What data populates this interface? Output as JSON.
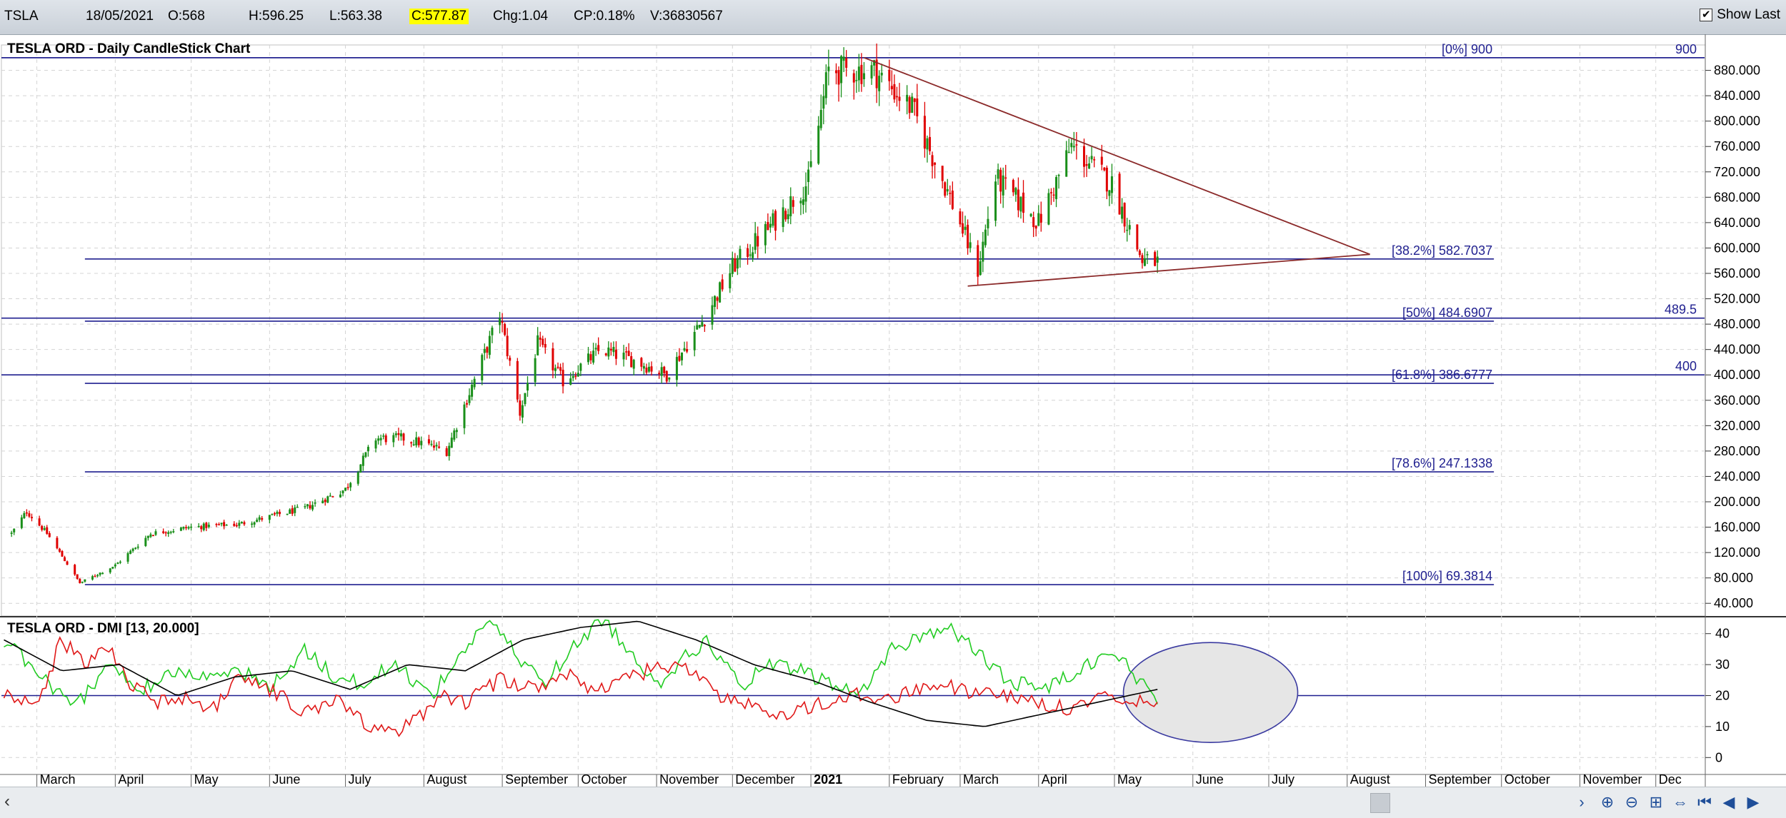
{
  "quote_bar": {
    "symbol": "TSLA",
    "date": "18/05/2021",
    "open": "O:568",
    "high": "H:596.25",
    "low": "L:563.38",
    "close": "C:577.87",
    "change": "Chg:1.04",
    "change_pct": "CP:0.18%",
    "volume": "V:36830567",
    "show_last_label": "Show Last",
    "show_last_checked": true
  },
  "colors": {
    "up": "#1a8f1a",
    "down": "#e00000",
    "fib_line": "#1f1f8f",
    "trendline": "#8b2a2a",
    "di_plus": "#22cc22",
    "di_minus": "#e01818",
    "adx": "#000000",
    "ellipse_fill": "#e6e6e6",
    "ellipse_stroke": "#3a3aa0",
    "highlight": "#ffff00"
  },
  "chart_data": [
    {
      "type": "candlestick",
      "title": "TESLA ORD - Daily CandleStick Chart",
      "ylim": [
        20,
        920
      ],
      "y_ticks": [
        "880.000",
        "840.000",
        "800.000",
        "760.000",
        "720.000",
        "680.000",
        "640.000",
        "600.000",
        "560.000",
        "520.000",
        "480.000",
        "440.000",
        "400.000",
        "360.000",
        "320.000",
        "280.000",
        "240.000",
        "200.000",
        "160.000",
        "120.000",
        "80.000",
        "40.000"
      ],
      "x_labels": [
        "March",
        "April",
        "May",
        "June",
        "July",
        "August",
        "September",
        "October",
        "November",
        "December",
        "2021",
        "February",
        "March",
        "April",
        "May",
        "June",
        "July",
        "August",
        "September",
        "October",
        "November",
        "Dec"
      ],
      "price_path": [
        {
          "date": "2020-02-20",
          "close": 150
        },
        {
          "date": "2020-02-26",
          "close": 185
        },
        {
          "date": "2020-03-05",
          "close": 150
        },
        {
          "date": "2020-03-18",
          "close": 72
        },
        {
          "date": "2020-04-01",
          "close": 100
        },
        {
          "date": "2020-04-15",
          "close": 150
        },
        {
          "date": "2020-05-01",
          "close": 160
        },
        {
          "date": "2020-05-20",
          "close": 165
        },
        {
          "date": "2020-06-15",
          "close": 190
        },
        {
          "date": "2020-07-01",
          "close": 220
        },
        {
          "date": "2020-07-13",
          "close": 300
        },
        {
          "date": "2020-07-25",
          "close": 300
        },
        {
          "date": "2020-08-10",
          "close": 280
        },
        {
          "date": "2020-08-31",
          "close": 495
        },
        {
          "date": "2020-09-08",
          "close": 340
        },
        {
          "date": "2020-09-15",
          "close": 450
        },
        {
          "date": "2020-09-25",
          "close": 390
        },
        {
          "date": "2020-10-10",
          "close": 440
        },
        {
          "date": "2020-10-25",
          "close": 420
        },
        {
          "date": "2020-11-05",
          "close": 400
        },
        {
          "date": "2020-11-20",
          "close": 490
        },
        {
          "date": "2020-12-01",
          "close": 570
        },
        {
          "date": "2020-12-15",
          "close": 630
        },
        {
          "date": "2020-12-31",
          "close": 705
        },
        {
          "date": "2021-01-08",
          "close": 880
        },
        {
          "date": "2021-01-26",
          "close": 880
        },
        {
          "date": "2021-02-10",
          "close": 820
        },
        {
          "date": "2021-02-25",
          "close": 680
        },
        {
          "date": "2021-03-08",
          "close": 565
        },
        {
          "date": "2021-03-15",
          "close": 710
        },
        {
          "date": "2021-04-01",
          "close": 640
        },
        {
          "date": "2021-04-14",
          "close": 760
        },
        {
          "date": "2021-04-30",
          "close": 700
        },
        {
          "date": "2021-05-12",
          "close": 580
        },
        {
          "date": "2021-05-18",
          "close": 577.87
        }
      ],
      "fibonacci": [
        {
          "label": "[0%] 900",
          "value": 900,
          "extent": "full"
        },
        {
          "label": "[38.2%] 582.7037",
          "value": 582.7037,
          "extent": "partial"
        },
        {
          "label": "[50%] 484.6907",
          "value": 484.6907,
          "extent": "partial"
        },
        {
          "label": "[61.8%] 386.6777",
          "value": 386.6777,
          "extent": "partial"
        },
        {
          "label": "[78.6%] 247.1338",
          "value": 247.1338,
          "extent": "partial"
        },
        {
          "label": "[100%] 69.3814",
          "value": 69.3814,
          "extent": "partial"
        }
      ],
      "horizontal_lines": [
        {
          "label": "900",
          "value": 900
        },
        {
          "label": "489.5",
          "value": 489.5
        },
        {
          "label": "400",
          "value": 400
        }
      ],
      "trendlines": [
        {
          "from": {
            "date": "2021-01-22",
            "value": 900
          },
          "to": {
            "date": "2021-08-10",
            "value": 590
          }
        },
        {
          "from": {
            "date": "2021-03-04",
            "value": 540
          },
          "to": {
            "date": "2021-08-10",
            "value": 590
          }
        }
      ]
    },
    {
      "type": "line",
      "title": "TESLA ORD - DMI [13, 20.000]",
      "ylim": [
        -5,
        45
      ],
      "y_ticks": [
        "40",
        "30",
        "20",
        "10",
        "0"
      ],
      "threshold": 20,
      "series": [
        {
          "key": "di_plus",
          "points": [
            [
              0,
              38
            ],
            [
              0.03,
              28
            ],
            [
              0.06,
              15
            ],
            [
              0.09,
              30
            ],
            [
              0.12,
              22
            ],
            [
              0.15,
              28
            ],
            [
              0.18,
              25
            ],
            [
              0.2,
              30
            ],
            [
              0.23,
              22
            ],
            [
              0.26,
              35
            ],
            [
              0.29,
              25
            ],
            [
              0.31,
              24
            ],
            [
              0.34,
              30
            ],
            [
              0.37,
              20
            ],
            [
              0.4,
              35
            ],
            [
              0.42,
              45
            ],
            [
              0.45,
              30
            ],
            [
              0.47,
              25
            ],
            [
              0.5,
              38
            ],
            [
              0.52,
              45
            ],
            [
              0.55,
              30
            ],
            [
              0.57,
              25
            ],
            [
              0.59,
              32
            ],
            [
              0.61,
              38
            ],
            [
              0.64,
              22
            ],
            [
              0.66,
              30
            ],
            [
              0.69,
              28
            ],
            [
              0.71,
              25
            ],
            [
              0.74,
              20
            ],
            [
              0.77,
              35
            ],
            [
              0.8,
              40
            ],
            [
              0.82,
              42
            ],
            [
              0.84,
              35
            ],
            [
              0.87,
              25
            ],
            [
              0.9,
              22
            ],
            [
              0.93,
              28
            ],
            [
              0.96,
              35
            ],
            [
              1.0,
              18
            ]
          ]
        },
        {
          "key": "di_minus",
          "points": [
            [
              0,
              20
            ],
            [
              0.03,
              18
            ],
            [
              0.05,
              38
            ],
            [
              0.07,
              30
            ],
            [
              0.09,
              35
            ],
            [
              0.11,
              24
            ],
            [
              0.13,
              18
            ],
            [
              0.16,
              20
            ],
            [
              0.18,
              15
            ],
            [
              0.2,
              25
            ],
            [
              0.23,
              22
            ],
            [
              0.26,
              15
            ],
            [
              0.29,
              18
            ],
            [
              0.31,
              12
            ],
            [
              0.33,
              8
            ],
            [
              0.35,
              10
            ],
            [
              0.38,
              20
            ],
            [
              0.4,
              18
            ],
            [
              0.43,
              25
            ],
            [
              0.46,
              22
            ],
            [
              0.49,
              28
            ],
            [
              0.51,
              22
            ],
            [
              0.54,
              25
            ],
            [
              0.57,
              30
            ],
            [
              0.6,
              28
            ],
            [
              0.62,
              20
            ],
            [
              0.65,
              16
            ],
            [
              0.68,
              14
            ],
            [
              0.71,
              18
            ],
            [
              0.74,
              20
            ],
            [
              0.77,
              18
            ],
            [
              0.8,
              24
            ],
            [
              0.83,
              22
            ],
            [
              0.86,
              20
            ],
            [
              0.89,
              18
            ],
            [
              0.92,
              16
            ],
            [
              0.95,
              20
            ],
            [
              1.0,
              18
            ]
          ]
        },
        {
          "key": "adx",
          "points": [
            [
              0,
              38
            ],
            [
              0.05,
              28
            ],
            [
              0.1,
              30
            ],
            [
              0.15,
              20
            ],
            [
              0.2,
              26
            ],
            [
              0.25,
              28
            ],
            [
              0.3,
              22
            ],
            [
              0.35,
              30
            ],
            [
              0.4,
              28
            ],
            [
              0.45,
              38
            ],
            [
              0.5,
              42
            ],
            [
              0.55,
              44
            ],
            [
              0.6,
              38
            ],
            [
              0.65,
              30
            ],
            [
              0.7,
              25
            ],
            [
              0.75,
              18
            ],
            [
              0.8,
              12
            ],
            [
              0.85,
              10
            ],
            [
              0.9,
              14
            ],
            [
              0.95,
              18
            ],
            [
              1.0,
              22
            ]
          ]
        }
      ]
    }
  ]
}
